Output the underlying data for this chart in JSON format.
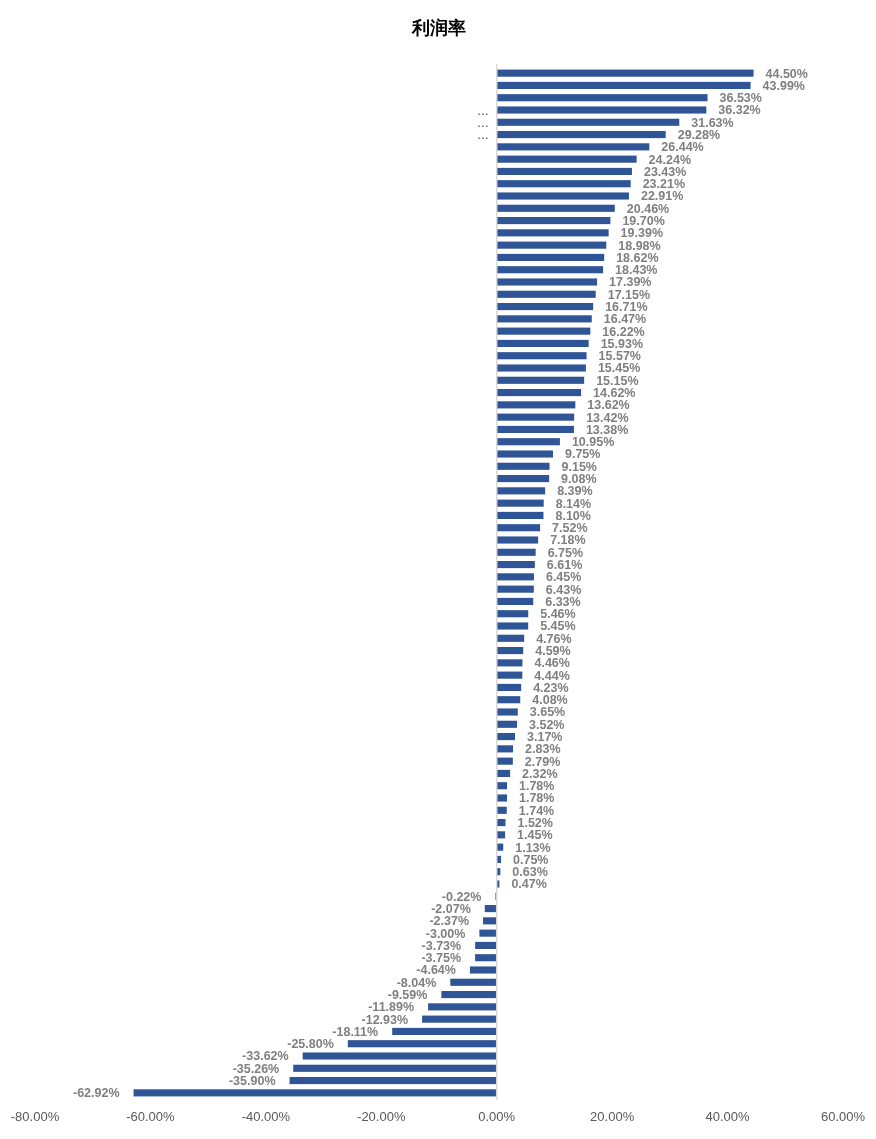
{
  "chart_data": {
    "type": "bar",
    "orientation": "horizontal",
    "title": "利润率",
    "categories": [
      null,
      null,
      null,
      "...",
      "...",
      "...",
      null,
      null,
      null,
      null,
      null,
      null,
      null,
      null,
      null,
      null,
      null,
      null,
      null,
      null,
      null,
      null,
      null,
      null,
      null,
      null,
      null,
      null,
      null,
      null,
      null,
      null,
      null,
      null,
      null,
      null,
      null,
      null,
      null,
      null,
      null,
      null,
      null,
      null,
      null,
      null,
      null,
      null,
      null,
      null,
      null,
      null,
      null,
      null,
      null,
      null,
      null,
      null,
      null,
      null,
      null,
      null,
      null,
      null,
      null,
      null,
      null,
      null,
      null,
      null,
      null,
      null,
      null,
      null,
      null,
      null,
      null,
      null,
      null,
      null,
      null,
      null,
      null,
      null
    ],
    "values": [
      44.5,
      43.99,
      36.53,
      36.32,
      31.63,
      29.28,
      26.44,
      24.24,
      23.43,
      23.21,
      22.91,
      20.46,
      19.7,
      19.39,
      18.98,
      18.62,
      18.43,
      17.39,
      17.15,
      16.71,
      16.47,
      16.22,
      15.93,
      15.57,
      15.45,
      15.15,
      14.62,
      13.62,
      13.42,
      13.38,
      10.95,
      9.75,
      9.15,
      9.08,
      8.39,
      8.14,
      8.1,
      7.52,
      7.18,
      6.75,
      6.61,
      6.45,
      6.43,
      6.33,
      5.46,
      5.45,
      4.76,
      4.59,
      4.46,
      4.44,
      4.23,
      4.08,
      3.65,
      3.52,
      3.17,
      2.83,
      2.79,
      2.32,
      1.78,
      1.78,
      1.74,
      1.52,
      1.45,
      1.13,
      0.75,
      0.63,
      0.47,
      -0.22,
      -2.07,
      -2.37,
      -3.0,
      -3.73,
      -3.75,
      -4.64,
      -8.04,
      -9.59,
      -11.89,
      -12.93,
      -18.11,
      -25.8,
      -33.62,
      -35.26,
      -35.9,
      -62.92
    ],
    "value_labels": [
      "44.50%",
      "43.99%",
      "36.53%",
      "36.32%",
      "31.63%",
      "29.28%",
      "26.44%",
      "24.24%",
      "23.43%",
      "23.21%",
      "22.91%",
      "20.46%",
      "19.70%",
      "19.39%",
      "18.98%",
      "18.62%",
      "18.43%",
      "17.39%",
      "17.15%",
      "16.71%",
      "16.47%",
      "16.22%",
      "15.93%",
      "15.57%",
      "15.45%",
      "15.15%",
      "14.62%",
      "13.62%",
      "13.42%",
      "13.38%",
      "10.95%",
      "9.75%",
      "9.15%",
      "9.08%",
      "8.39%",
      "8.14%",
      "8.10%",
      "7.52%",
      "7.18%",
      "6.75%",
      "6.61%",
      "6.45%",
      "6.43%",
      "6.33%",
      "5.46%",
      "5.45%",
      "4.76%",
      "4.59%",
      "4.46%",
      "4.44%",
      "4.23%",
      "4.08%",
      "3.65%",
      "3.52%",
      "3.17%",
      "2.83%",
      "2.79%",
      "2.32%",
      "1.78%",
      "1.78%",
      "1.74%",
      "1.52%",
      "1.45%",
      "1.13%",
      "0.75%",
      "0.63%",
      "0.47%",
      "-0.22%",
      "-2.07%",
      "-2.37%",
      "-3.00%",
      "-3.73%",
      "-3.75%",
      "-4.64%",
      "-8.04%",
      "-9.59%",
      "-11.89%",
      "-12.93%",
      "-18.11%",
      "-25.80%",
      "-33.62%",
      "-35.26%",
      "-35.90%",
      "-62.92%"
    ],
    "color": "#2f5597",
    "xlim": [
      -80,
      60
    ],
    "xticks": [
      {
        "value": -80,
        "label": "-80.00%"
      },
      {
        "value": -60,
        "label": "-60.00%"
      },
      {
        "value": -40,
        "label": "-40.00%"
      },
      {
        "value": -20,
        "label": "-20.00%"
      },
      {
        "value": 0,
        "label": "0.00%"
      },
      {
        "value": 20,
        "label": "20.00%"
      },
      {
        "value": 40,
        "label": "40.00%"
      },
      {
        "value": 60,
        "label": "60.00%"
      }
    ]
  }
}
